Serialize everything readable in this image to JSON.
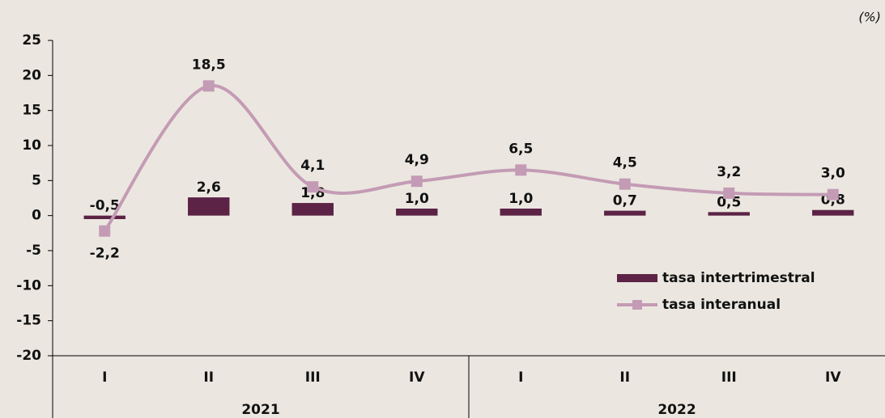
{
  "chart_data": {
    "type": "bar_line",
    "unit": "(%)",
    "groups": [
      {
        "name": "2021",
        "categories": [
          "I",
          "II",
          "III",
          "IV"
        ]
      },
      {
        "name": "2022",
        "categories": [
          "I",
          "II",
          "III",
          "IV"
        ]
      }
    ],
    "series": [
      {
        "name": "tasa intertrimestral",
        "kind": "bar",
        "color": "#5c2346",
        "values": [
          -0.5,
          2.6,
          1.8,
          1.0,
          1.0,
          0.7,
          0.5,
          0.8
        ],
        "value_labels": [
          "-0,5",
          "2,6",
          "1,8",
          "1,0",
          "1,0",
          "0,7",
          "0,5",
          "0,8"
        ]
      },
      {
        "name": "tasa interanual",
        "kind": "line",
        "color": "#c49bb5",
        "values": [
          -2.2,
          18.5,
          4.1,
          4.9,
          6.5,
          4.5,
          3.2,
          3.0
        ],
        "value_labels": [
          "-2,2",
          "18,5",
          "4,1",
          "4,9",
          "6,5",
          "4,5",
          "3,2",
          "3,0"
        ]
      }
    ],
    "ylim": [
      -20,
      25
    ],
    "yticks": [
      -20,
      -15,
      -10,
      -5,
      0,
      5,
      10,
      15,
      20,
      25
    ]
  }
}
